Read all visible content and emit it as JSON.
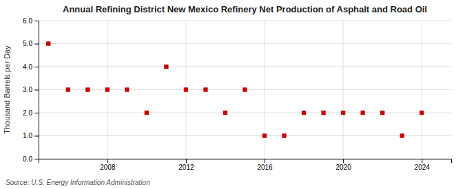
{
  "chart_data": {
    "type": "scatter",
    "title": "Annual Refining District New Mexico Refinery Net Production of Asphalt and Road Oil",
    "ylabel": "Thousand Barrels per Day",
    "source": "Source: U.S. Energy Information Administration",
    "x": [
      2005,
      2006,
      2007,
      2008,
      2009,
      2010,
      2011,
      2012,
      2013,
      2014,
      2015,
      2016,
      2017,
      2018,
      2019,
      2020,
      2021,
      2022,
      2023,
      2024
    ],
    "values": [
      5.0,
      3.0,
      3.0,
      3.0,
      3.0,
      2.0,
      4.0,
      3.0,
      3.0,
      2.0,
      3.0,
      1.0,
      1.0,
      2.0,
      2.0,
      2.0,
      2.0,
      2.0,
      1.0,
      2.0
    ],
    "color": "#cc0000",
    "marker": "square",
    "xlim": [
      2004.5,
      2025.5
    ],
    "xticks": [
      2008,
      2012,
      2016,
      2020,
      2024
    ],
    "ylim": [
      0.0,
      6.0
    ],
    "yticks": [
      {
        "value": 0.0,
        "label": "0.0"
      },
      {
        "value": 1.0,
        "label": "1.0"
      },
      {
        "value": 2.0,
        "label": "2.0"
      },
      {
        "value": 3.0,
        "label": "3.0"
      },
      {
        "value": 4.0,
        "label": "4.0"
      },
      {
        "value": 5.0,
        "label": "5.0"
      },
      {
        "value": 6.0,
        "label": "6.0"
      }
    ],
    "grid": true
  }
}
